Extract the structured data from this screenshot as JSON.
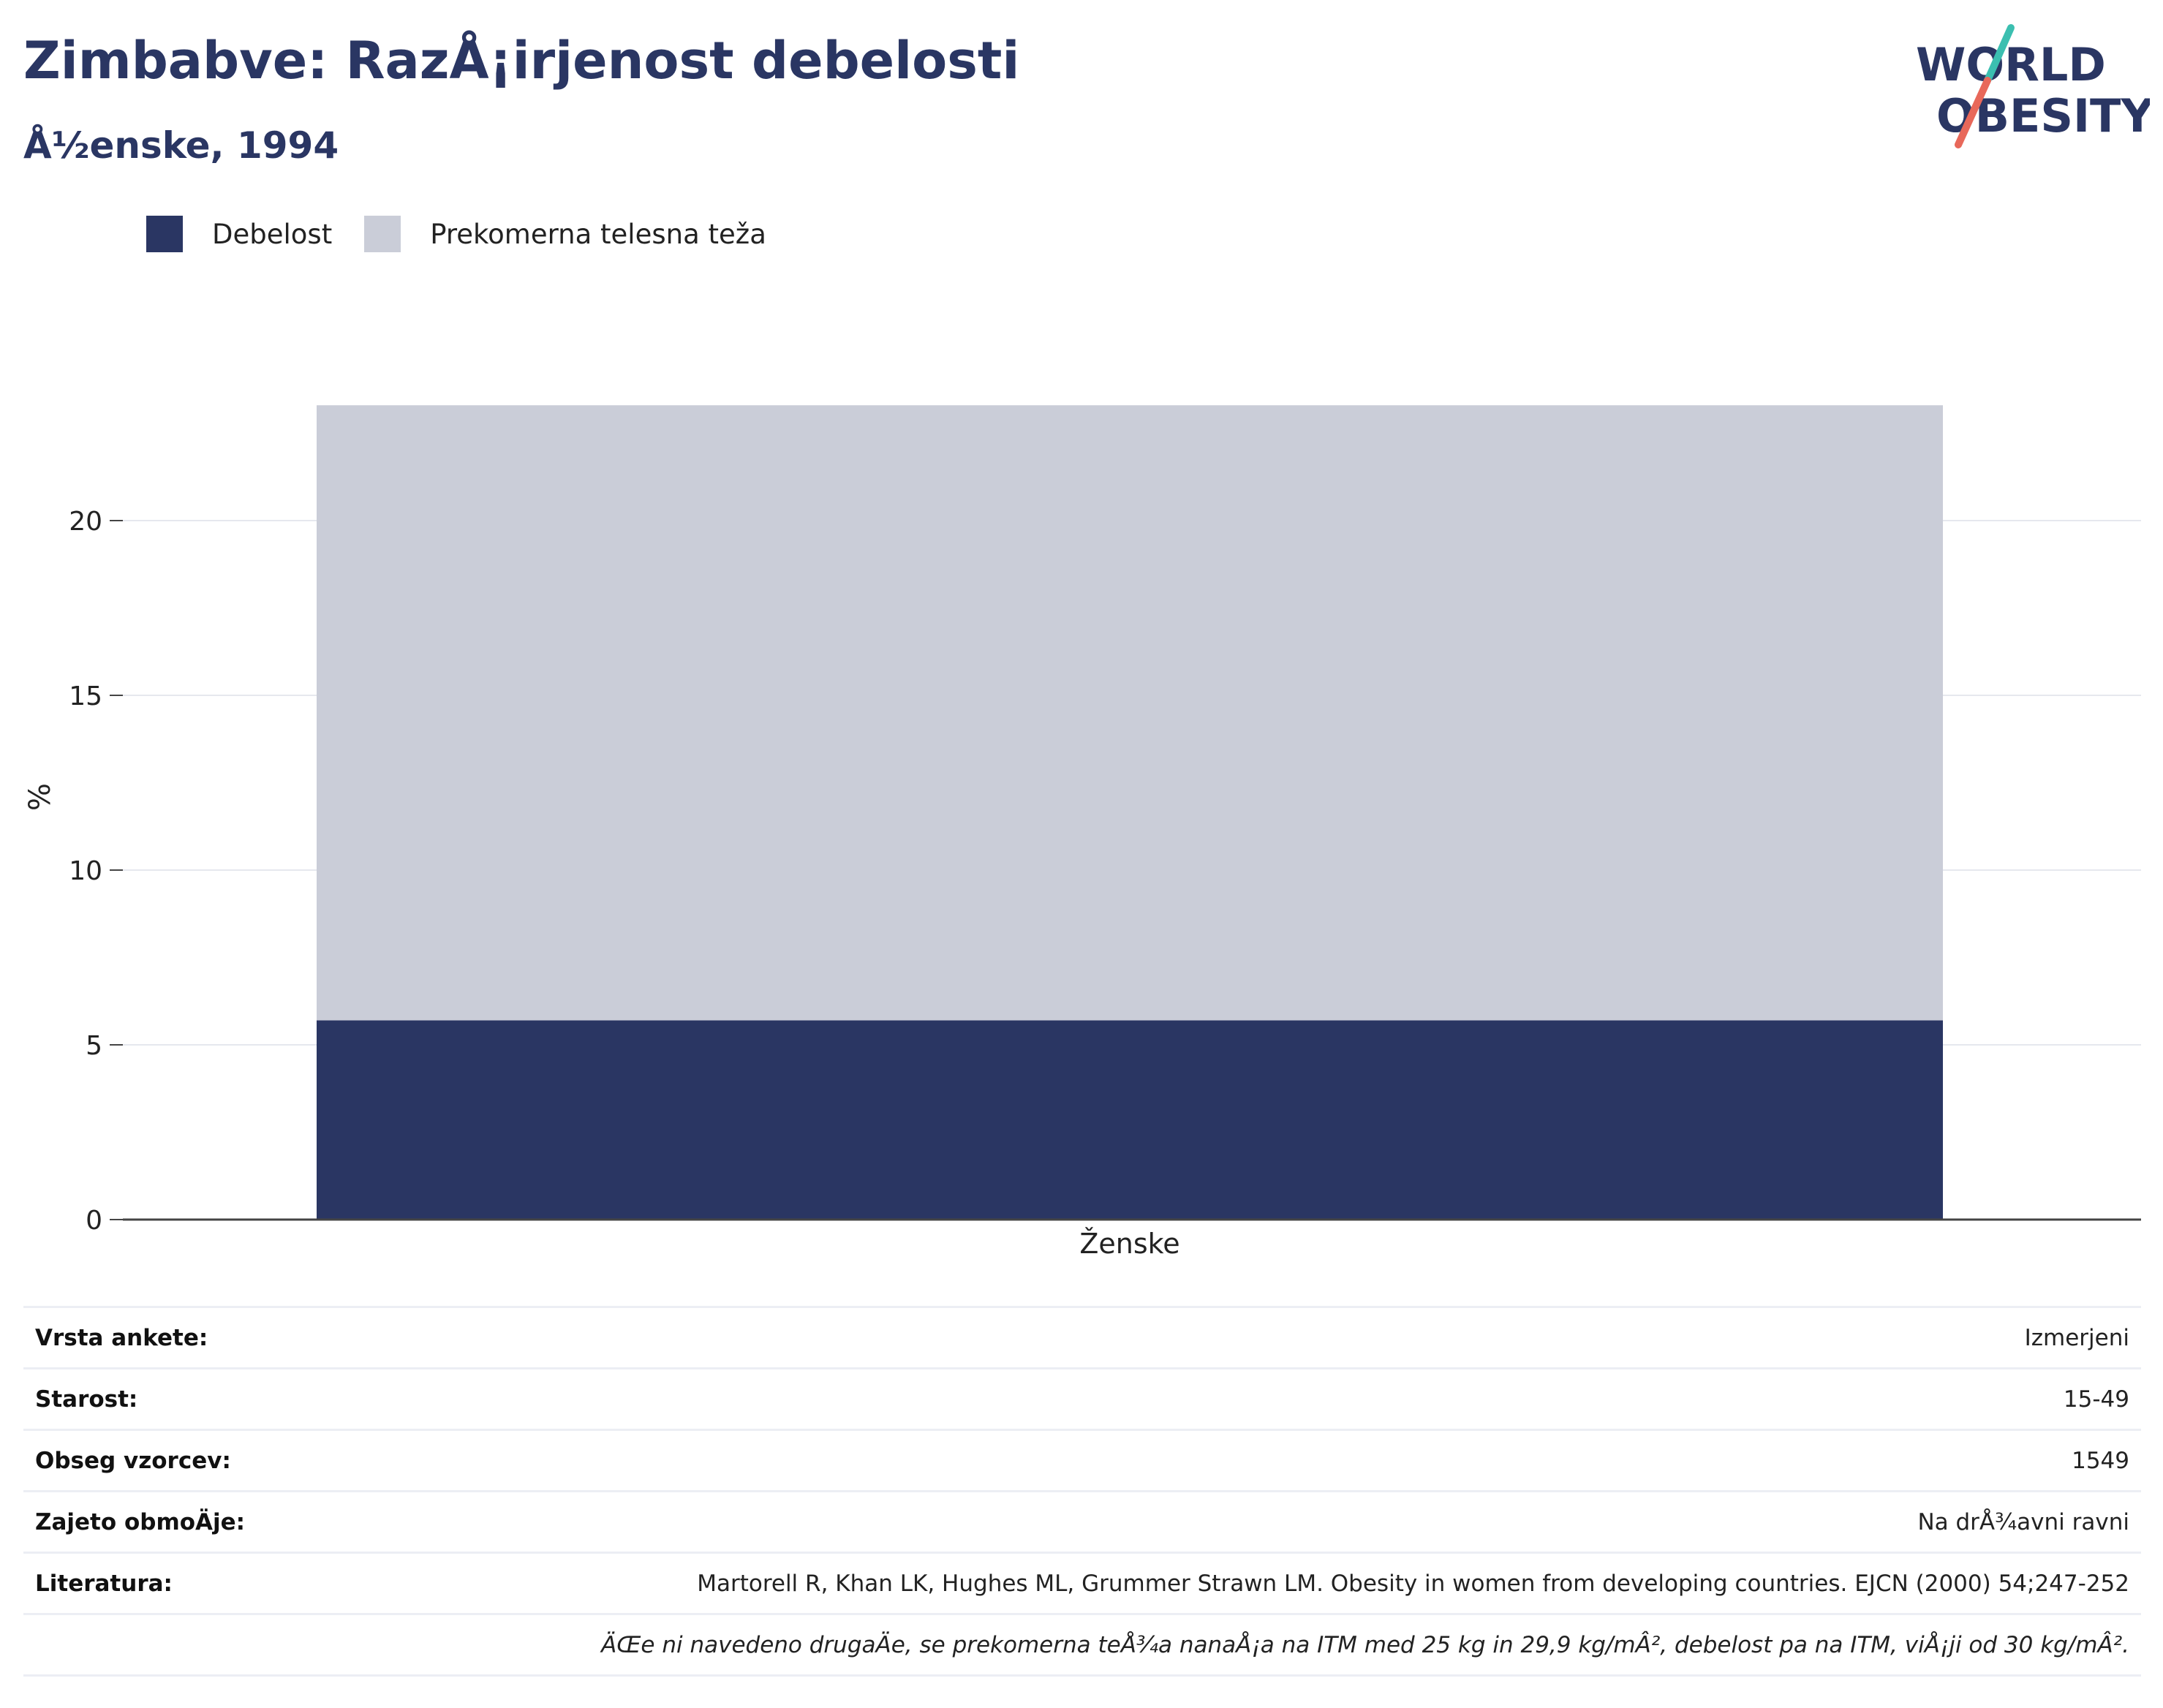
{
  "header": {
    "title": "Zimbabve: RazÅ¡irjenost debelosti",
    "subtitle": "Å½enske, 1994"
  },
  "logo": {
    "line1": "WORLD",
    "line2": "OBESITY",
    "colors": {
      "text": "#2a3663",
      "slash_top": "#3bbfb0",
      "slash_bottom": "#e8685a"
    }
  },
  "legend": {
    "items": [
      {
        "label": "Debelost",
        "color": "#2a3663"
      },
      {
        "label": "Prekomerna telesna teža",
        "color": "#cacdd8"
      }
    ]
  },
  "chart_data": {
    "type": "bar",
    "stacked": true,
    "categories": [
      "Ženske"
    ],
    "series": [
      {
        "name": "Debelost",
        "values": [
          5.7
        ],
        "color": "#2a3663"
      },
      {
        "name": "Prekomerna telesna teža",
        "values": [
          17.6
        ],
        "color": "#cacdd8"
      }
    ],
    "ylabel": "%",
    "xlabel": "",
    "ylim": [
      0,
      25
    ],
    "yticks": [
      0,
      5,
      10,
      15,
      20
    ],
    "grid": true,
    "legend_position": "top-left"
  },
  "info": {
    "rows": [
      {
        "label": "Vrsta ankete:",
        "value": "Izmerjeni"
      },
      {
        "label": "Starost:",
        "value": "15-49"
      },
      {
        "label": "Obseg vzorcev:",
        "value": "1549"
      },
      {
        "label": "Zajeto obmoÄje:",
        "value": "Na drÅ¾avni ravni"
      },
      {
        "label": "Literatura:",
        "value": "Martorell R, Khan LK, Hughes ML, Grummer Strawn LM. Obesity in women from developing countries. EJCN (2000) 54;247-252"
      }
    ],
    "note": "ÄŒe ni navedeno drugaÄe, se prekomerna teÅ¾a nanaÅ¡a na ITM med 25 kg in 29,9 kg/mÂ², debelost pa na ITM, viÅ¡ji od 30 kg/mÂ²."
  }
}
